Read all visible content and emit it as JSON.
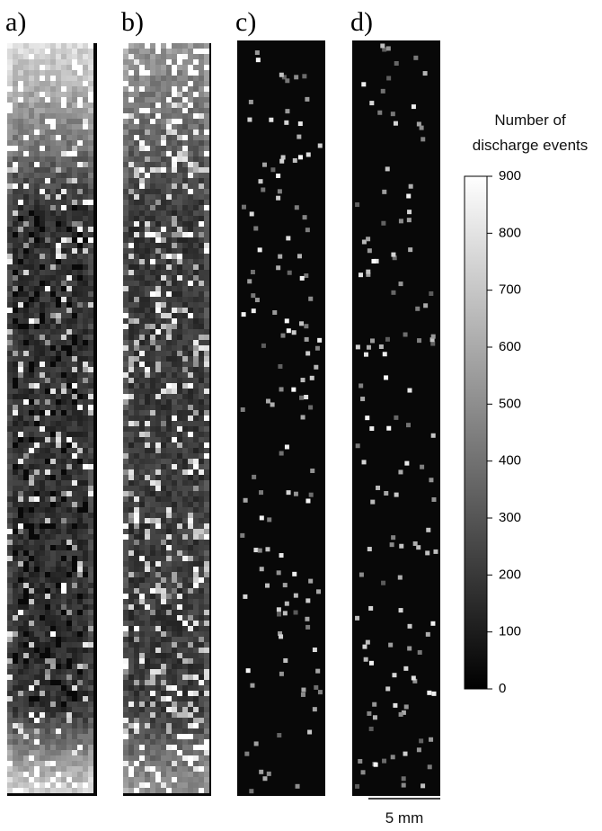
{
  "panels": [
    {
      "label": "a)"
    },
    {
      "label": "b)"
    },
    {
      "label": "c)"
    },
    {
      "label": "d)"
    }
  ],
  "colorbar": {
    "title": "Number of discharge events",
    "lim": [
      0,
      900
    ],
    "ticks": [
      0,
      100,
      200,
      300,
      400,
      500,
      600,
      700,
      800,
      900
    ]
  },
  "scale_bar": {
    "label": "5 mm"
  }
}
